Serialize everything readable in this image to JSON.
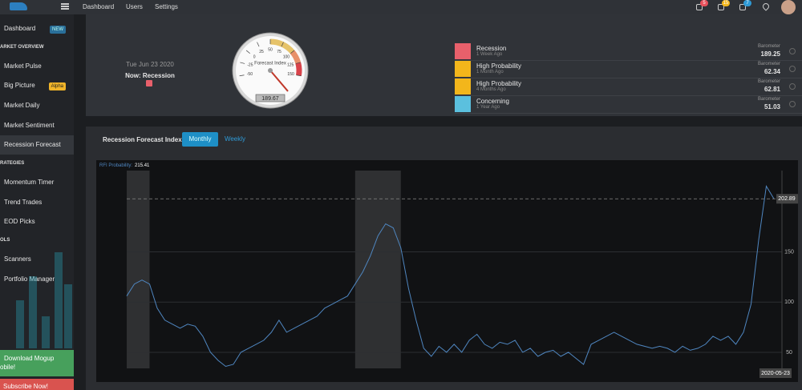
{
  "topbar": {
    "nav": [
      "Dashboard",
      "Users",
      "Settings"
    ],
    "badges": [
      5,
      15,
      7
    ]
  },
  "sidebar": {
    "items": [
      {
        "label": "Dashboard",
        "tag": "NEW"
      },
      {
        "header": "ARKET OVERVIEW"
      },
      {
        "label": "Market Pulse"
      },
      {
        "label": "Big Picture",
        "tag": "Alpha"
      },
      {
        "label": "Market Daily"
      },
      {
        "label": "Market Sentiment"
      },
      {
        "label": "Recession Forecast"
      },
      {
        "header": "RATEGIES"
      },
      {
        "label": "Momentum Timer"
      },
      {
        "label": "Trend Trades"
      },
      {
        "label": "EOD Picks"
      },
      {
        "header": "OLS"
      },
      {
        "label": "Scanners"
      },
      {
        "label": "Portfolio Manager"
      }
    ],
    "promo": [
      "Download Mogup",
      "obile!"
    ],
    "subscribe": "Subscribe Now!"
  },
  "status": {
    "date": "Tue Jun 23 2020",
    "now": "Now: Recession"
  },
  "gauge": {
    "title": "Forecast Index",
    "ticks": [
      -50,
      -25,
      0,
      25,
      50,
      75,
      100,
      125,
      150
    ],
    "value": 189.67
  },
  "barometer": {
    "rows": [
      {
        "title": "Recession",
        "ago": "1 Week Ago",
        "label": "Barometer",
        "value": 189.25
      },
      {
        "title": "High Probability",
        "ago": "1 Month Ago",
        "label": "Barometer",
        "value": 62.34
      },
      {
        "title": "High Probability",
        "ago": "4 Months Ago",
        "label": "Barometer",
        "value": 62.81
      },
      {
        "title": "Concerning",
        "ago": "1 Year Ago",
        "label": "Barometer",
        "value": 51.03
      }
    ]
  },
  "forecast": {
    "title": "Recession Forecast Index",
    "tabs": [
      "Monthly",
      "Weekly"
    ],
    "chart": {
      "type": "line",
      "series_name": "RFI Probability:",
      "color": "#4f86c0",
      "values": [
        106,
        118,
        122,
        118,
        94,
        82,
        78,
        74,
        78,
        76,
        66,
        50,
        42,
        36,
        38,
        50,
        54,
        58,
        62,
        70,
        82,
        70,
        74,
        78,
        82,
        86,
        94,
        98,
        102,
        106,
        118,
        130,
        146,
        166,
        178,
        174,
        154,
        114,
        82,
        54,
        46,
        56,
        50,
        58,
        50,
        62,
        68,
        58,
        54,
        60,
        58,
        62,
        50,
        54,
        46,
        50,
        52,
        46,
        50,
        44,
        38,
        58,
        62,
        66,
        70,
        66,
        62,
        58,
        56,
        54,
        56,
        54,
        50,
        56,
        52,
        54,
        58,
        66,
        62,
        66,
        58,
        70,
        98,
        162,
        215.41,
        202.89
      ],
      "ylim": [
        34,
        231
      ],
      "yticks": [
        50,
        100,
        150
      ],
      "recession_bands": [
        [
          0,
          3
        ],
        [
          30,
          36
        ]
      ],
      "last_date": "2020-05-23"
    }
  }
}
